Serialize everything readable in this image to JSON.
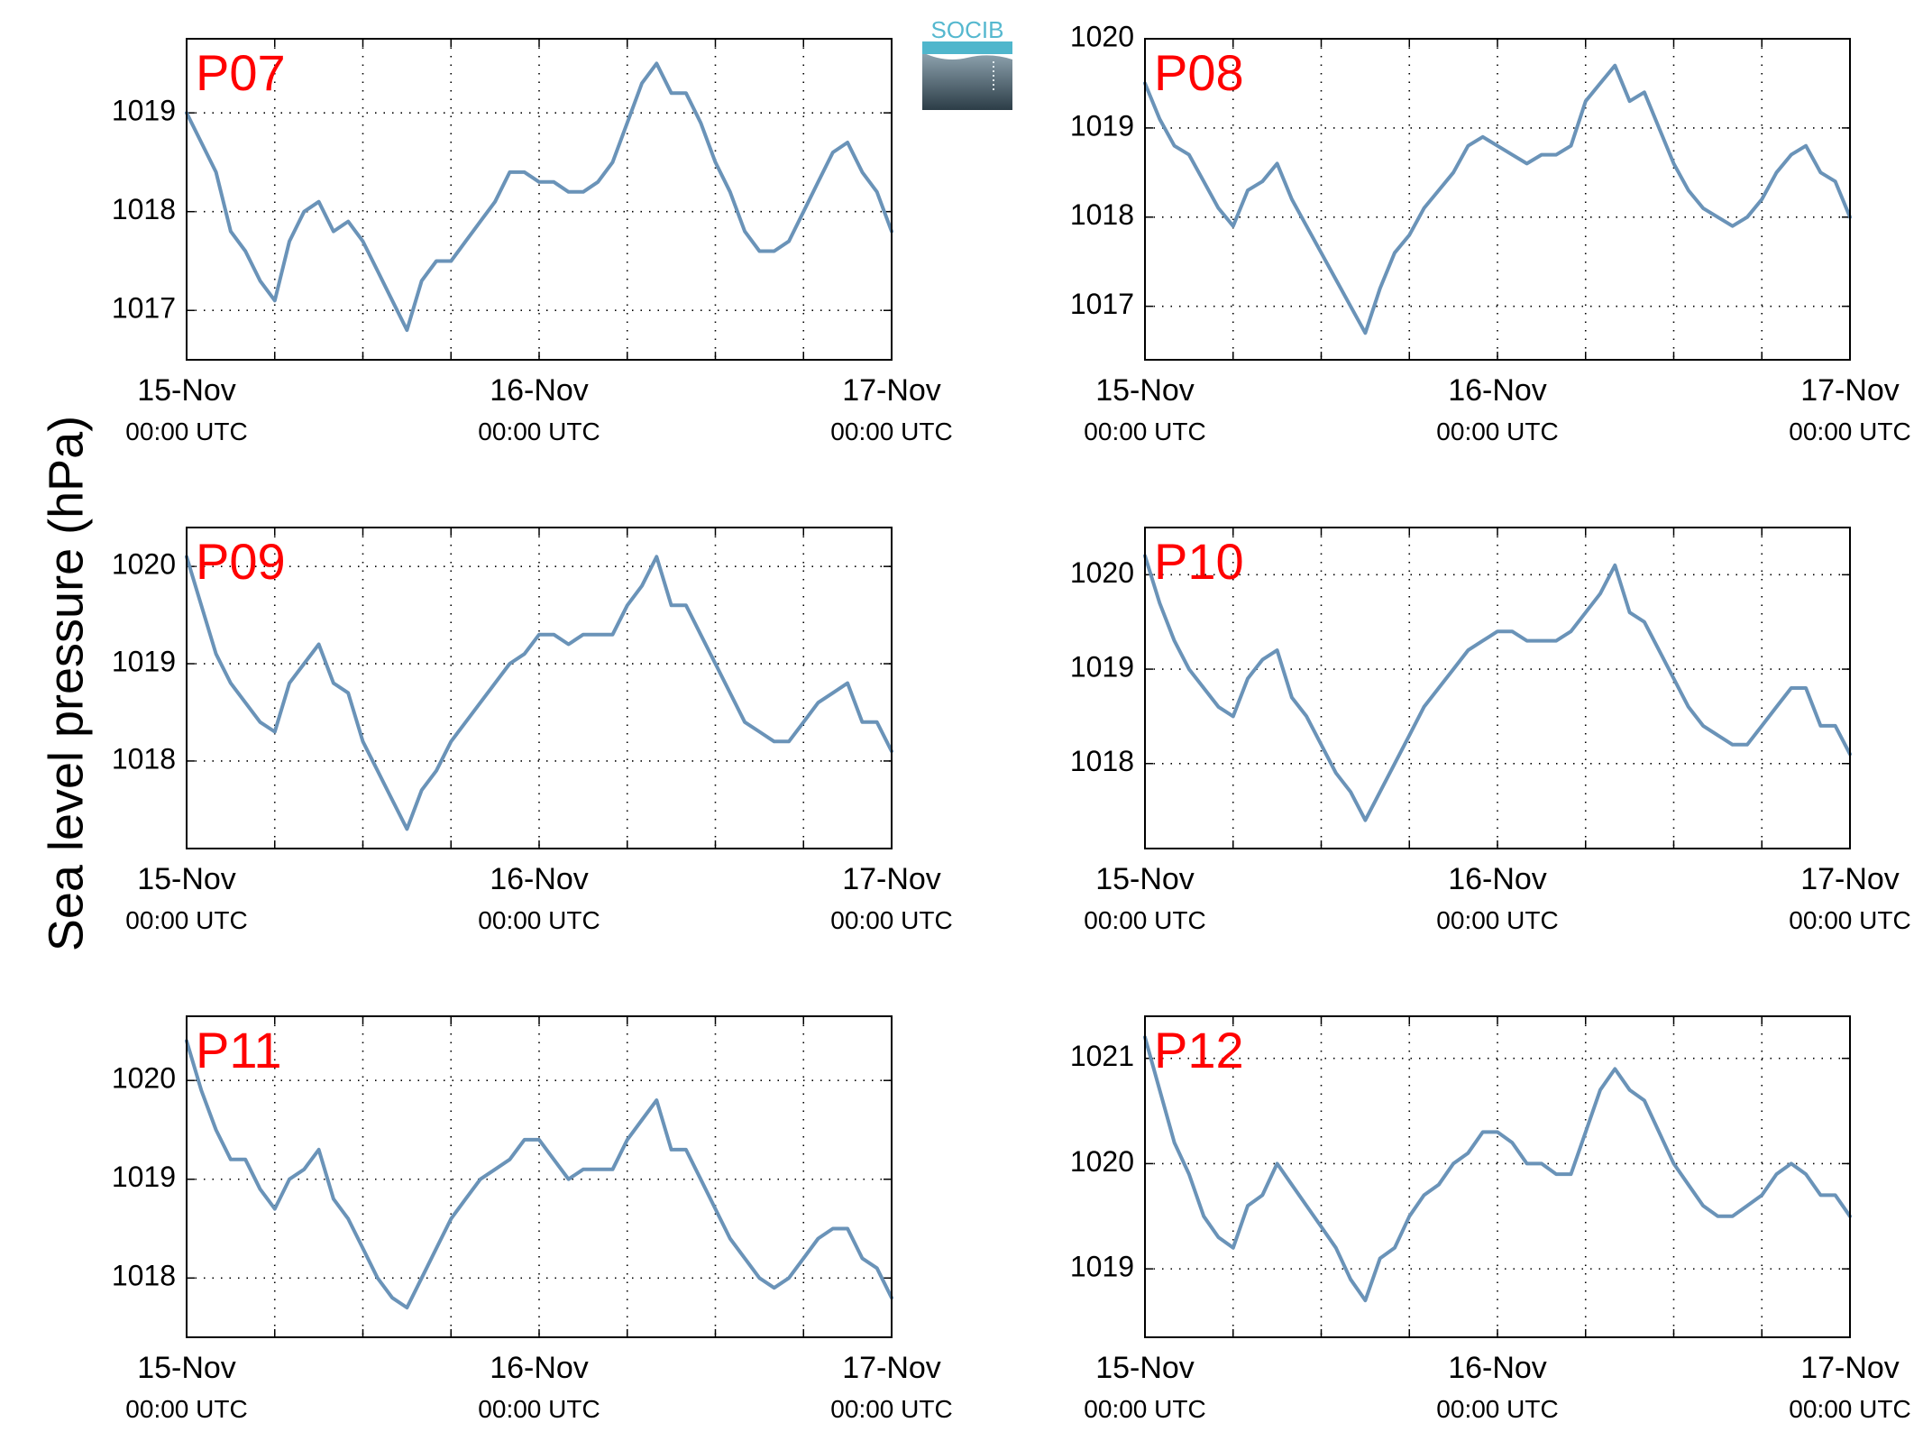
{
  "figure": {
    "ylabel": "Sea level pressure (hPa)",
    "logo_text": "SOCIB",
    "line_color": "#6a93b8",
    "panel_label_color": "#ff0000"
  },
  "chart_data": [
    {
      "type": "line",
      "panel_label": "P07",
      "xlabel": "",
      "ylabel": "",
      "x_range": [
        "15-Nov 00:00 UTC",
        "17-Nov 00:00 UTC"
      ],
      "xtick_labels": [
        [
          "15-Nov",
          "00:00 UTC"
        ],
        [
          "16-Nov",
          "00:00 UTC"
        ],
        [
          "17-Nov",
          "00:00 UTC"
        ]
      ],
      "xtick_hours": [
        0,
        24,
        48
      ],
      "minor_grid_hours": [
        6,
        12,
        18,
        30,
        36,
        42
      ],
      "ylim": [
        1016.5,
        1019.75
      ],
      "yticks": [
        1017,
        1018,
        1019
      ],
      "grid": true,
      "series": [
        {
          "x_hours": [
            0,
            1,
            2,
            3,
            4,
            5,
            6,
            7,
            8,
            9,
            10,
            11,
            12,
            13,
            14,
            15,
            16,
            17,
            18,
            19,
            20,
            21,
            22,
            23,
            24,
            25,
            26,
            27,
            28,
            29,
            30,
            31,
            32,
            33,
            34,
            35,
            36,
            37,
            38,
            39,
            40,
            41,
            42,
            43,
            44,
            45,
            46,
            47,
            48
          ],
          "values": [
            1019.0,
            1018.7,
            1018.4,
            1017.8,
            1017.6,
            1017.3,
            1017.1,
            1017.7,
            1018.0,
            1018.1,
            1017.8,
            1017.9,
            1017.7,
            1017.4,
            1017.1,
            1016.8,
            1017.3,
            1017.5,
            1017.5,
            1017.7,
            1017.9,
            1018.1,
            1018.4,
            1018.4,
            1018.3,
            1018.3,
            1018.2,
            1018.2,
            1018.3,
            1018.5,
            1018.9,
            1019.3,
            1019.5,
            1019.2,
            1019.2,
            1018.9,
            1018.5,
            1018.2,
            1017.8,
            1017.6,
            1017.6,
            1017.7,
            1018.0,
            1018.3,
            1018.6,
            1018.7,
            1018.4,
            1018.2,
            1017.8
          ]
        }
      ]
    },
    {
      "type": "line",
      "panel_label": "P08",
      "xlabel": "",
      "ylabel": "",
      "x_range": [
        "15-Nov 00:00 UTC",
        "17-Nov 00:00 UTC"
      ],
      "xtick_labels": [
        [
          "15-Nov",
          "00:00 UTC"
        ],
        [
          "16-Nov",
          "00:00 UTC"
        ],
        [
          "17-Nov",
          "00:00 UTC"
        ]
      ],
      "xtick_hours": [
        0,
        24,
        48
      ],
      "minor_grid_hours": [
        6,
        12,
        18,
        30,
        36,
        42
      ],
      "ylim": [
        1016.4,
        1020.0
      ],
      "yticks": [
        1017,
        1018,
        1019,
        1020
      ],
      "grid": true,
      "series": [
        {
          "x_hours": [
            0,
            1,
            2,
            3,
            4,
            5,
            6,
            7,
            8,
            9,
            10,
            11,
            12,
            13,
            14,
            15,
            16,
            17,
            18,
            19,
            20,
            21,
            22,
            23,
            24,
            25,
            26,
            27,
            28,
            29,
            30,
            31,
            32,
            33,
            34,
            35,
            36,
            37,
            38,
            39,
            40,
            41,
            42,
            43,
            44,
            45,
            46,
            47,
            48
          ],
          "values": [
            1019.5,
            1019.1,
            1018.8,
            1018.7,
            1018.4,
            1018.1,
            1017.9,
            1018.3,
            1018.4,
            1018.6,
            1018.2,
            1017.9,
            1017.6,
            1017.3,
            1017.0,
            1016.7,
            1017.2,
            1017.6,
            1017.8,
            1018.1,
            1018.3,
            1018.5,
            1018.8,
            1018.9,
            1018.8,
            1018.7,
            1018.6,
            1018.7,
            1018.7,
            1018.8,
            1019.3,
            1019.5,
            1019.7,
            1019.3,
            1019.4,
            1019.0,
            1018.6,
            1018.3,
            1018.1,
            1018.0,
            1017.9,
            1018.0,
            1018.2,
            1018.5,
            1018.7,
            1018.8,
            1018.5,
            1018.4,
            1018.0
          ]
        }
      ]
    },
    {
      "type": "line",
      "panel_label": "P09",
      "xlabel": "",
      "ylabel": "",
      "x_range": [
        "15-Nov 00:00 UTC",
        "17-Nov 00:00 UTC"
      ],
      "xtick_labels": [
        [
          "15-Nov",
          "00:00 UTC"
        ],
        [
          "16-Nov",
          "00:00 UTC"
        ],
        [
          "17-Nov",
          "00:00 UTC"
        ]
      ],
      "xtick_hours": [
        0,
        24,
        48
      ],
      "minor_grid_hours": [
        6,
        12,
        18,
        30,
        36,
        42
      ],
      "ylim": [
        1017.1,
        1020.4
      ],
      "yticks": [
        1018,
        1019,
        1020
      ],
      "grid": true,
      "series": [
        {
          "x_hours": [
            0,
            1,
            2,
            3,
            4,
            5,
            6,
            7,
            8,
            9,
            10,
            11,
            12,
            13,
            14,
            15,
            16,
            17,
            18,
            19,
            20,
            21,
            22,
            23,
            24,
            25,
            26,
            27,
            28,
            29,
            30,
            31,
            32,
            33,
            34,
            35,
            36,
            37,
            38,
            39,
            40,
            41,
            42,
            43,
            44,
            45,
            46,
            47,
            48
          ],
          "values": [
            1020.1,
            1019.6,
            1019.1,
            1018.8,
            1018.6,
            1018.4,
            1018.3,
            1018.8,
            1019.0,
            1019.2,
            1018.8,
            1018.7,
            1018.2,
            1017.9,
            1017.6,
            1017.3,
            1017.7,
            1017.9,
            1018.2,
            1018.4,
            1018.6,
            1018.8,
            1019.0,
            1019.1,
            1019.3,
            1019.3,
            1019.2,
            1019.3,
            1019.3,
            1019.3,
            1019.6,
            1019.8,
            1020.1,
            1019.6,
            1019.6,
            1019.3,
            1019.0,
            1018.7,
            1018.4,
            1018.3,
            1018.2,
            1018.2,
            1018.4,
            1018.6,
            1018.7,
            1018.8,
            1018.4,
            1018.4,
            1018.1
          ]
        }
      ]
    },
    {
      "type": "line",
      "panel_label": "P10",
      "xlabel": "",
      "ylabel": "",
      "x_range": [
        "15-Nov 00:00 UTC",
        "17-Nov 00:00 UTC"
      ],
      "xtick_labels": [
        [
          "15-Nov",
          "00:00 UTC"
        ],
        [
          "16-Nov",
          "00:00 UTC"
        ],
        [
          "17-Nov",
          "00:00 UTC"
        ]
      ],
      "xtick_hours": [
        0,
        24,
        48
      ],
      "minor_grid_hours": [
        6,
        12,
        18,
        30,
        36,
        42
      ],
      "ylim": [
        1017.1,
        1020.5
      ],
      "yticks": [
        1018,
        1019,
        1020
      ],
      "grid": true,
      "series": [
        {
          "x_hours": [
            0,
            1,
            2,
            3,
            4,
            5,
            6,
            7,
            8,
            9,
            10,
            11,
            12,
            13,
            14,
            15,
            16,
            17,
            18,
            19,
            20,
            21,
            22,
            23,
            24,
            25,
            26,
            27,
            28,
            29,
            30,
            31,
            32,
            33,
            34,
            35,
            36,
            37,
            38,
            39,
            40,
            41,
            42,
            43,
            44,
            45,
            46,
            47,
            48
          ],
          "values": [
            1020.2,
            1019.7,
            1019.3,
            1019.0,
            1018.8,
            1018.6,
            1018.5,
            1018.9,
            1019.1,
            1019.2,
            1018.7,
            1018.5,
            1018.2,
            1017.9,
            1017.7,
            1017.4,
            1017.7,
            1018.0,
            1018.3,
            1018.6,
            1018.8,
            1019.0,
            1019.2,
            1019.3,
            1019.4,
            1019.4,
            1019.3,
            1019.3,
            1019.3,
            1019.4,
            1019.6,
            1019.8,
            1020.1,
            1019.6,
            1019.5,
            1019.2,
            1018.9,
            1018.6,
            1018.4,
            1018.3,
            1018.2,
            1018.2,
            1018.4,
            1018.6,
            1018.8,
            1018.8,
            1018.4,
            1018.4,
            1018.1
          ]
        }
      ]
    },
    {
      "type": "line",
      "panel_label": "P11",
      "xlabel": "",
      "ylabel": "",
      "x_range": [
        "15-Nov 00:00 UTC",
        "17-Nov 00:00 UTC"
      ],
      "xtick_labels": [
        [
          "15-Nov",
          "00:00 UTC"
        ],
        [
          "16-Nov",
          "00:00 UTC"
        ],
        [
          "17-Nov",
          "00:00 UTC"
        ]
      ],
      "xtick_hours": [
        0,
        24,
        48
      ],
      "minor_grid_hours": [
        6,
        12,
        18,
        30,
        36,
        42
      ],
      "ylim": [
        1017.4,
        1020.65
      ],
      "yticks": [
        1018,
        1019,
        1020
      ],
      "grid": true,
      "series": [
        {
          "x_hours": [
            0,
            1,
            2,
            3,
            4,
            5,
            6,
            7,
            8,
            9,
            10,
            11,
            12,
            13,
            14,
            15,
            16,
            17,
            18,
            19,
            20,
            21,
            22,
            23,
            24,
            25,
            26,
            27,
            28,
            29,
            30,
            31,
            32,
            33,
            34,
            35,
            36,
            37,
            38,
            39,
            40,
            41,
            42,
            43,
            44,
            45,
            46,
            47,
            48
          ],
          "values": [
            1020.4,
            1019.9,
            1019.5,
            1019.2,
            1019.2,
            1018.9,
            1018.7,
            1019.0,
            1019.1,
            1019.3,
            1018.8,
            1018.6,
            1018.3,
            1018.0,
            1017.8,
            1017.7,
            1018.0,
            1018.3,
            1018.6,
            1018.8,
            1019.0,
            1019.1,
            1019.2,
            1019.4,
            1019.4,
            1019.2,
            1019.0,
            1019.1,
            1019.1,
            1019.1,
            1019.4,
            1019.6,
            1019.8,
            1019.3,
            1019.3,
            1019.0,
            1018.7,
            1018.4,
            1018.2,
            1018.0,
            1017.9,
            1018.0,
            1018.2,
            1018.4,
            1018.5,
            1018.5,
            1018.2,
            1018.1,
            1017.8
          ]
        }
      ]
    },
    {
      "type": "line",
      "panel_label": "P12",
      "xlabel": "",
      "ylabel": "",
      "x_range": [
        "15-Nov 00:00 UTC",
        "17-Nov 00:00 UTC"
      ],
      "xtick_labels": [
        [
          "15-Nov",
          "00:00 UTC"
        ],
        [
          "16-Nov",
          "00:00 UTC"
        ],
        [
          "17-Nov",
          "00:00 UTC"
        ]
      ],
      "xtick_hours": [
        0,
        24,
        48
      ],
      "minor_grid_hours": [
        6,
        12,
        18,
        30,
        36,
        42
      ],
      "ylim": [
        1018.35,
        1021.4
      ],
      "yticks": [
        1019,
        1020,
        1021
      ],
      "grid": true,
      "series": [
        {
          "x_hours": [
            0,
            1,
            2,
            3,
            4,
            5,
            6,
            7,
            8,
            9,
            10,
            11,
            12,
            13,
            14,
            15,
            16,
            17,
            18,
            19,
            20,
            21,
            22,
            23,
            24,
            25,
            26,
            27,
            28,
            29,
            30,
            31,
            32,
            33,
            34,
            35,
            36,
            37,
            38,
            39,
            40,
            41,
            42,
            43,
            44,
            45,
            46,
            47,
            48
          ],
          "values": [
            1021.2,
            1020.7,
            1020.2,
            1019.9,
            1019.5,
            1019.3,
            1019.2,
            1019.6,
            1019.7,
            1020.0,
            1019.8,
            1019.6,
            1019.4,
            1019.2,
            1018.9,
            1018.7,
            1019.1,
            1019.2,
            1019.5,
            1019.7,
            1019.8,
            1020.0,
            1020.1,
            1020.3,
            1020.3,
            1020.2,
            1020.0,
            1020.0,
            1019.9,
            1019.9,
            1020.3,
            1020.7,
            1020.9,
            1020.7,
            1020.6,
            1020.3,
            1020.0,
            1019.8,
            1019.6,
            1019.5,
            1019.5,
            1019.6,
            1019.7,
            1019.9,
            1020.0,
            1019.9,
            1019.7,
            1019.7,
            1019.5
          ]
        }
      ]
    }
  ]
}
